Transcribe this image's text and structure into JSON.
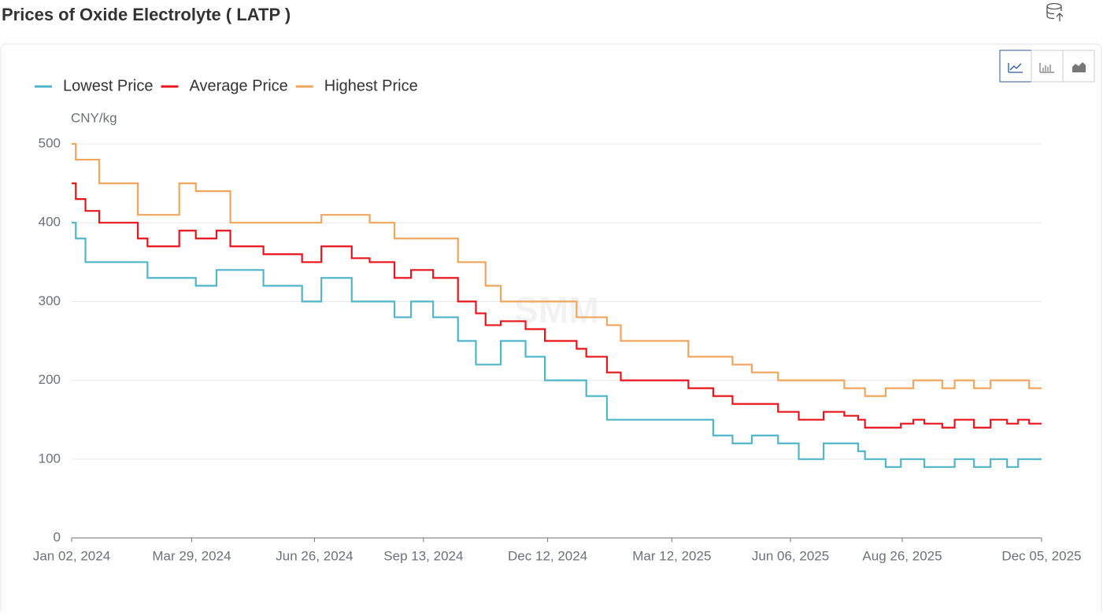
{
  "chart_data": {
    "type": "line",
    "step": true,
    "title": "Prices of Oxide Electrolyte ( LATP )",
    "y_label": "CNY/kg",
    "watermark": "SMM",
    "x": [
      "2024-01-02",
      "2024-01-05",
      "2024-01-12",
      "2024-01-22",
      "2024-02-19",
      "2024-02-26",
      "2024-03-20",
      "2024-04-01",
      "2024-04-16",
      "2024-04-26",
      "2024-05-20",
      "2024-06-17",
      "2024-07-01",
      "2024-07-23",
      "2024-08-05",
      "2024-08-23",
      "2024-09-04",
      "2024-09-20",
      "2024-10-08",
      "2024-10-21",
      "2024-10-28",
      "2024-11-08",
      "2024-11-26",
      "2024-12-10",
      "2025-01-02",
      "2025-01-09",
      "2025-01-24",
      "2025-02-03",
      "2025-03-24",
      "2025-04-11",
      "2025-04-25",
      "2025-05-09",
      "2025-05-28",
      "2025-06-12",
      "2025-06-30",
      "2025-07-15",
      "2025-07-25",
      "2025-07-30",
      "2025-08-14",
      "2025-08-25",
      "2025-09-03",
      "2025-09-11",
      "2025-09-24",
      "2025-10-03",
      "2025-10-17",
      "2025-10-29",
      "2025-11-10",
      "2025-11-18",
      "2025-11-26",
      "2025-12-05"
    ],
    "series": [
      {
        "name": "Lowest Price",
        "color": "#4fb6c9",
        "values": [
          400,
          380,
          350,
          350,
          350,
          330,
          330,
          320,
          340,
          340,
          320,
          300,
          330,
          300,
          300,
          280,
          300,
          280,
          250,
          220,
          220,
          250,
          230,
          200,
          200,
          180,
          150,
          150,
          150,
          130,
          120,
          130,
          120,
          100,
          120,
          120,
          110,
          100,
          90,
          100,
          100,
          90,
          90,
          100,
          90,
          100,
          90,
          100,
          100,
          100
        ]
      },
      {
        "name": "Average Price",
        "color": "#e8141b",
        "values": [
          450,
          430,
          415,
          400,
          380,
          370,
          390,
          380,
          390,
          370,
          360,
          350,
          370,
          355,
          350,
          330,
          340,
          330,
          300,
          285,
          270,
          275,
          265,
          250,
          240,
          230,
          210,
          200,
          190,
          180,
          170,
          170,
          160,
          150,
          160,
          155,
          150,
          140,
          140,
          145,
          150,
          145,
          140,
          150,
          140,
          150,
          145,
          150,
          145,
          145
        ]
      },
      {
        "name": "Highest Price",
        "color": "#f0a55c",
        "values": [
          500,
          480,
          480,
          450,
          410,
          410,
          450,
          440,
          440,
          400,
          400,
          400,
          410,
          410,
          400,
          380,
          380,
          380,
          350,
          350,
          320,
          300,
          300,
          300,
          280,
          280,
          270,
          250,
          230,
          230,
          220,
          210,
          200,
          200,
          200,
          190,
          190,
          180,
          190,
          190,
          200,
          200,
          190,
          200,
          190,
          200,
          200,
          200,
          190,
          190
        ]
      }
    ],
    "xlim": [
      "2024-01-02",
      "2025-12-05"
    ],
    "xticks": [
      {
        "value": "2024-01-02",
        "label": "Jan 02, 2024"
      },
      {
        "value": "2024-03-29",
        "label": "Mar 29, 2024"
      },
      {
        "value": "2024-06-26",
        "label": "Jun 26, 2024"
      },
      {
        "value": "2024-09-13",
        "label": "Sep 13, 2024"
      },
      {
        "value": "2024-12-12",
        "label": "Dec 12, 2024"
      },
      {
        "value": "2025-03-12",
        "label": "Mar 12, 2025"
      },
      {
        "value": "2025-06-06",
        "label": "Jun 06, 2025"
      },
      {
        "value": "2025-08-26",
        "label": "Aug 26, 2025"
      },
      {
        "value": "2025-12-05",
        "label": "Dec 05, 2025"
      }
    ],
    "ylim": [
      0,
      500
    ],
    "yticks": [
      0,
      100,
      200,
      300,
      400,
      500
    ],
    "grid": true,
    "legend": "top-left"
  }
}
